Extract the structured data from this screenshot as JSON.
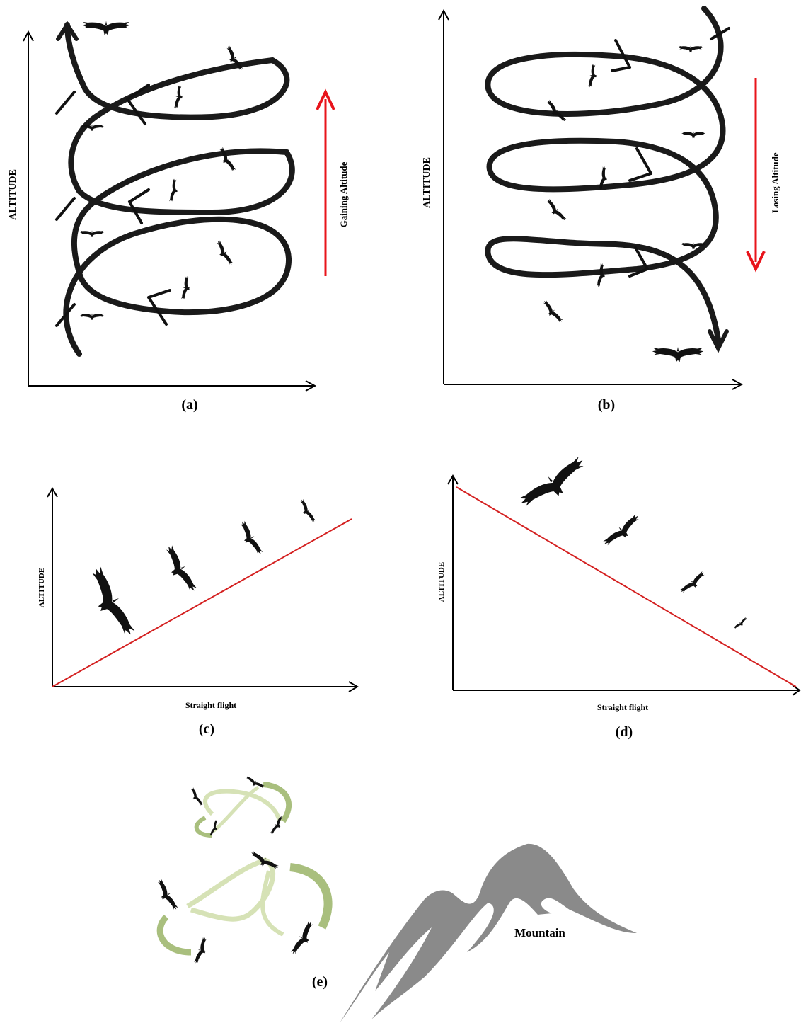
{
  "panels": {
    "a": {
      "caption": "(a)",
      "y_axis": "ALTITUDE",
      "direction": "Gaining Altitude"
    },
    "b": {
      "caption": "(b)",
      "y_axis": "ALTITUDE",
      "direction": "Losing Altitude"
    },
    "c": {
      "caption": "(c)",
      "y_axis": "ALTITUDE",
      "x_axis": "Straight flight"
    },
    "d": {
      "caption": "(d)",
      "y_axis": "ALTITUDE",
      "x_axis": "Straight flight"
    },
    "e": {
      "caption": "(e)",
      "label": "Mountain"
    }
  },
  "colors": {
    "spiral": "#1a1a1a",
    "direction_arrow": "#e8141b",
    "flight_line": "#d42020",
    "arrow_green": "#a9bf7e",
    "arrow_green_light": "#d6e2b6",
    "mountain": "#8a8a8a"
  }
}
